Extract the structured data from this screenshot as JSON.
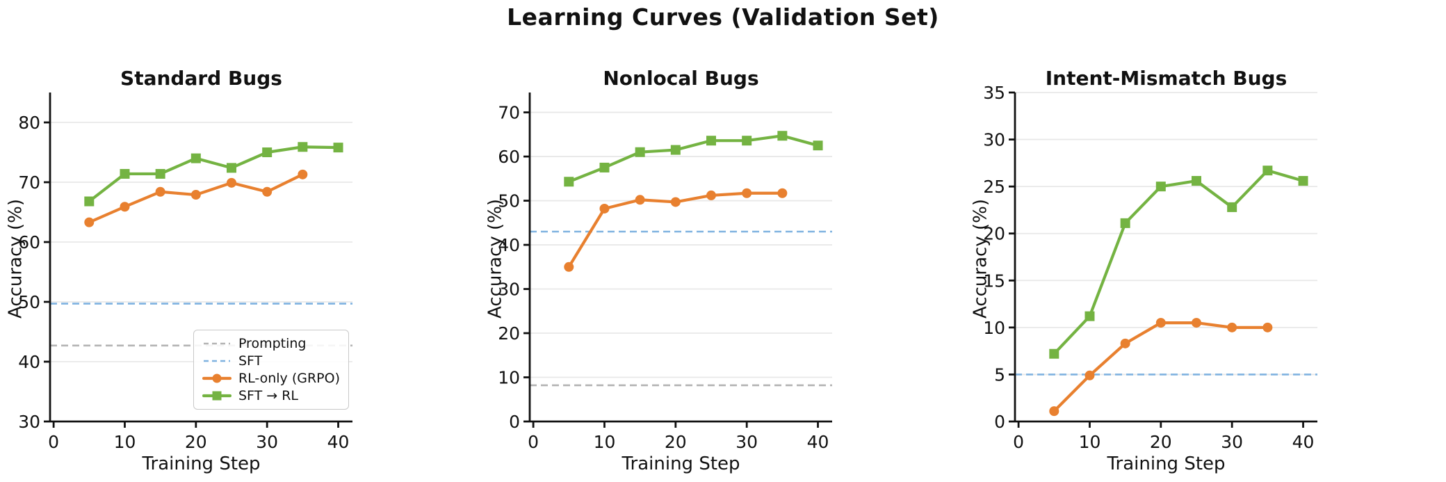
{
  "suptitle": "Learning Curves (Validation Set)",
  "colors": {
    "rl_only": "#e8802f",
    "sft_rl": "#74b342",
    "sft_baseline": "#7fb2e0",
    "prompting_baseline": "#b3b3b3",
    "grid": "#e8e8e8",
    "axis": "#111111"
  },
  "legend": {
    "position": "lower-right of first panel",
    "entries": [
      {
        "label": "Prompting",
        "style": "dashed",
        "color": "#b3b3b3"
      },
      {
        "label": "SFT",
        "style": "dashed",
        "color": "#7fb2e0"
      },
      {
        "label": "RL-only (GRPO)",
        "style": "line-circle",
        "color": "#e8802f"
      },
      {
        "label": "SFT → RL",
        "style": "line-square",
        "color": "#74b342"
      }
    ]
  },
  "chart_data": [
    {
      "type": "line",
      "title": "Standard Bugs",
      "xlabel": "Training Step",
      "ylabel": "Accuracy (%)",
      "xlim": [
        -0.5,
        42
      ],
      "xticks": [
        0,
        10,
        20,
        30,
        40
      ],
      "ylim": [
        30,
        85
      ],
      "yticks": [
        30,
        40,
        50,
        60,
        70,
        80
      ],
      "grid": "horizontal",
      "has_legend": true,
      "baselines": [
        {
          "name": "Prompting",
          "value": 42.7,
          "color": "#b3b3b3"
        },
        {
          "name": "SFT",
          "value": 49.7,
          "color": "#7fb2e0"
        }
      ],
      "series": [
        {
          "name": "RL-only (GRPO)",
          "color": "#e8802f",
          "marker": "circle",
          "x": [
            5,
            10,
            15,
            20,
            25,
            30,
            35
          ],
          "y": [
            63.3,
            65.9,
            68.4,
            67.9,
            69.9,
            68.4,
            71.3
          ]
        },
        {
          "name": "SFT → RL",
          "color": "#74b342",
          "marker": "square",
          "x": [
            5,
            10,
            15,
            20,
            25,
            30,
            35,
            40
          ],
          "y": [
            66.8,
            71.4,
            71.4,
            74.0,
            72.4,
            75.0,
            75.9,
            75.8
          ]
        }
      ]
    },
    {
      "type": "line",
      "title": "Nonlocal Bugs",
      "xlabel": "Training Step",
      "ylabel": "Accuracy (%)",
      "xlim": [
        -0.5,
        42
      ],
      "xticks": [
        0,
        10,
        20,
        30,
        40
      ],
      "ylim": [
        0,
        74.5
      ],
      "yticks": [
        0,
        10,
        20,
        30,
        40,
        50,
        60,
        70
      ],
      "grid": "horizontal",
      "has_legend": false,
      "baselines": [
        {
          "name": "Prompting",
          "value": 8.2,
          "color": "#b3b3b3"
        },
        {
          "name": "SFT",
          "value": 43.0,
          "color": "#7fb2e0"
        }
      ],
      "series": [
        {
          "name": "RL-only (GRPO)",
          "color": "#e8802f",
          "marker": "circle",
          "x": [
            5,
            10,
            15,
            20,
            25,
            30,
            35
          ],
          "y": [
            35.0,
            48.2,
            50.2,
            49.7,
            51.2,
            51.7,
            51.7
          ]
        },
        {
          "name": "SFT → RL",
          "color": "#74b342",
          "marker": "square",
          "x": [
            5,
            10,
            15,
            20,
            25,
            30,
            35,
            40
          ],
          "y": [
            54.3,
            57.5,
            61.0,
            61.5,
            63.6,
            63.6,
            64.7,
            62.5
          ]
        }
      ]
    },
    {
      "type": "line",
      "title": "Intent-Mismatch Bugs",
      "xlabel": "Training Step",
      "ylabel": "Accuracy (%)",
      "xlim": [
        -0.5,
        42
      ],
      "xticks": [
        0,
        10,
        20,
        30,
        40
      ],
      "ylim": [
        0,
        35
      ],
      "yticks": [
        0,
        5,
        10,
        15,
        20,
        25,
        30,
        35
      ],
      "grid": "horizontal",
      "has_legend": false,
      "baselines": [
        {
          "name": "SFT",
          "value": 5.0,
          "color": "#7fb2e0"
        }
      ],
      "series": [
        {
          "name": "RL-only (GRPO)",
          "color": "#e8802f",
          "marker": "circle",
          "x": [
            5,
            10,
            15,
            20,
            25,
            30,
            35
          ],
          "y": [
            1.1,
            4.9,
            8.3,
            10.5,
            10.5,
            10.0,
            10.0
          ]
        },
        {
          "name": "SFT → RL",
          "color": "#74b342",
          "marker": "square",
          "x": [
            5,
            10,
            15,
            20,
            25,
            30,
            35,
            40
          ],
          "y": [
            7.2,
            11.2,
            21.1,
            25.0,
            25.6,
            22.8,
            26.7,
            25.6
          ]
        }
      ]
    }
  ]
}
